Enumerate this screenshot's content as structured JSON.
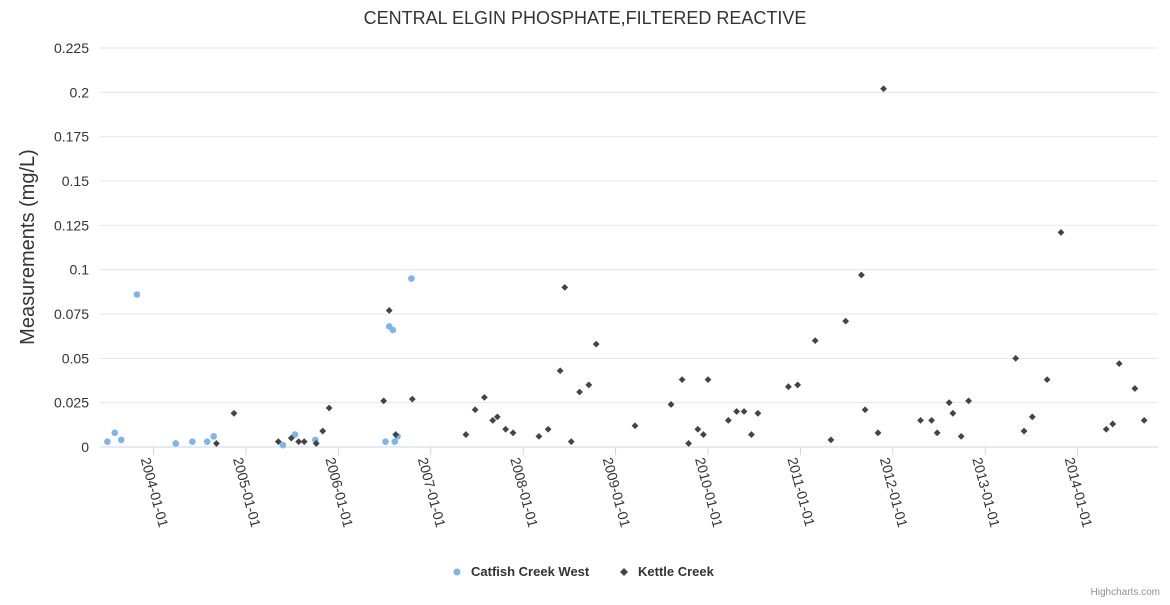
{
  "chart_data": {
    "type": "scatter",
    "title": "CENTRAL ELGIN PHOSPHATE,FILTERED REACTIVE",
    "xlabel": "",
    "ylabel": "Measurements (mg/L)",
    "ylim": [
      0,
      0.225
    ],
    "yticks": [
      "0",
      "0.025",
      "0.05",
      "0.075",
      "0.1",
      "0.125",
      "0.15",
      "0.175",
      "0.2",
      "0.225"
    ],
    "xlim": [
      2003.42,
      2014.87
    ],
    "xticks": [
      {
        "year": 2004,
        "label": "2004-01-01"
      },
      {
        "year": 2005,
        "label": "2005-01-01"
      },
      {
        "year": 2006,
        "label": "2006-01-01"
      },
      {
        "year": 2007,
        "label": "2007-01-01"
      },
      {
        "year": 2008,
        "label": "2008-01-01"
      },
      {
        "year": 2009,
        "label": "2009-01-01"
      },
      {
        "year": 2010,
        "label": "2010-01-01"
      },
      {
        "year": 2011,
        "label": "2011-01-01"
      },
      {
        "year": 2012,
        "label": "2012-01-01"
      },
      {
        "year": 2013,
        "label": "2013-01-01"
      },
      {
        "year": 2014,
        "label": "2014-01-01"
      }
    ],
    "grid": true,
    "legend_position": "bottom-center",
    "series": [
      {
        "name": "Catfish Creek West",
        "color": "#7cb5ec",
        "marker": "circle",
        "points": [
          [
            2003.5,
            0.003
          ],
          [
            2003.58,
            0.008
          ],
          [
            2003.65,
            0.004
          ],
          [
            2003.82,
            0.086
          ],
          [
            2004.24,
            0.002
          ],
          [
            2004.42,
            0.003
          ],
          [
            2004.58,
            0.003
          ],
          [
            2004.65,
            0.006
          ],
          [
            2005.4,
            0.001
          ],
          [
            2005.53,
            0.007
          ],
          [
            2005.75,
            0.004
          ],
          [
            2006.51,
            0.003
          ],
          [
            2006.55,
            0.068
          ],
          [
            2006.59,
            0.066
          ],
          [
            2006.61,
            0.003
          ],
          [
            2006.64,
            0.006
          ],
          [
            2006.79,
            0.095
          ]
        ]
      },
      {
        "name": "Kettle Creek",
        "color": "#434348",
        "marker": "diamond",
        "points": [
          [
            2004.68,
            0.002
          ],
          [
            2004.87,
            0.019
          ],
          [
            2005.35,
            0.003
          ],
          [
            2005.49,
            0.005
          ],
          [
            2005.57,
            0.003
          ],
          [
            2005.63,
            0.003
          ],
          [
            2005.76,
            0.002
          ],
          [
            2005.83,
            0.009
          ],
          [
            2005.9,
            0.022
          ],
          [
            2006.49,
            0.026
          ],
          [
            2006.55,
            0.077
          ],
          [
            2006.62,
            0.007
          ],
          [
            2006.8,
            0.027
          ],
          [
            2007.38,
            0.007
          ],
          [
            2007.48,
            0.021
          ],
          [
            2007.58,
            0.028
          ],
          [
            2007.67,
            0.015
          ],
          [
            2007.72,
            0.017
          ],
          [
            2007.81,
            0.01
          ],
          [
            2007.89,
            0.008
          ],
          [
            2008.17,
            0.006
          ],
          [
            2008.27,
            0.01
          ],
          [
            2008.4,
            0.043
          ],
          [
            2008.45,
            0.09
          ],
          [
            2008.52,
            0.003
          ],
          [
            2008.61,
            0.031
          ],
          [
            2008.71,
            0.035
          ],
          [
            2008.79,
            0.058
          ],
          [
            2009.21,
            0.012
          ],
          [
            2009.6,
            0.024
          ],
          [
            2009.72,
            0.038
          ],
          [
            2009.79,
            0.002
          ],
          [
            2009.89,
            0.01
          ],
          [
            2009.95,
            0.007
          ],
          [
            2010.0,
            0.038
          ],
          [
            2010.22,
            0.015
          ],
          [
            2010.31,
            0.02
          ],
          [
            2010.39,
            0.02
          ],
          [
            2010.47,
            0.007
          ],
          [
            2010.54,
            0.019
          ],
          [
            2010.87,
            0.034
          ],
          [
            2010.97,
            0.035
          ],
          [
            2011.16,
            0.06
          ],
          [
            2011.33,
            0.004
          ],
          [
            2011.49,
            0.071
          ],
          [
            2011.66,
            0.097
          ],
          [
            2011.7,
            0.021
          ],
          [
            2011.84,
            0.008
          ],
          [
            2011.9,
            0.202
          ],
          [
            2012.3,
            0.015
          ],
          [
            2012.42,
            0.015
          ],
          [
            2012.48,
            0.008
          ],
          [
            2012.61,
            0.025
          ],
          [
            2012.65,
            0.019
          ],
          [
            2012.74,
            0.006
          ],
          [
            2012.82,
            0.026
          ],
          [
            2013.33,
            0.05
          ],
          [
            2013.42,
            0.009
          ],
          [
            2013.51,
            0.017
          ],
          [
            2013.67,
            0.038
          ],
          [
            2013.82,
            0.121
          ],
          [
            2014.31,
            0.01
          ],
          [
            2014.38,
            0.013
          ],
          [
            2014.45,
            0.047
          ],
          [
            2014.62,
            0.033
          ],
          [
            2014.72,
            0.015
          ]
        ]
      }
    ]
  },
  "credits": "Highcharts.com"
}
